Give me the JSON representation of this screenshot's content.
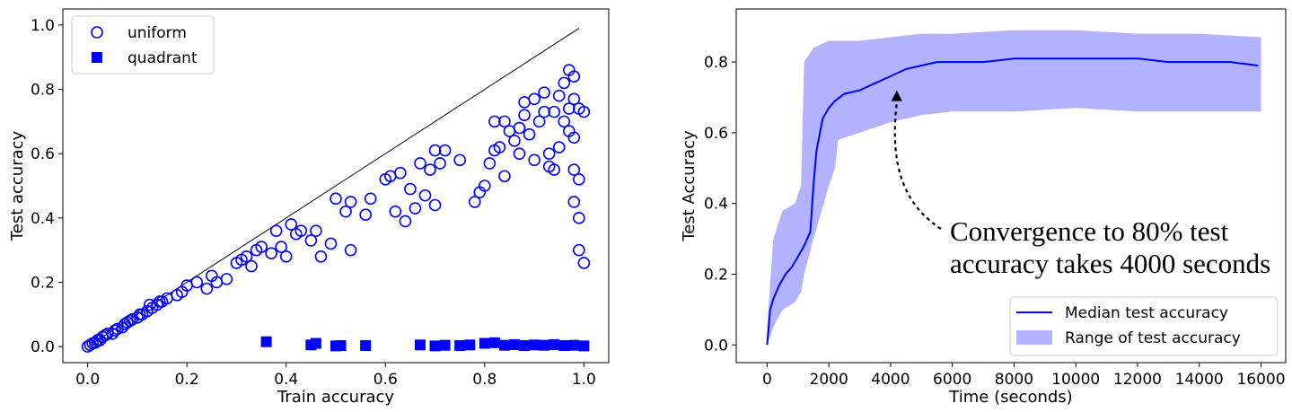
{
  "chart_data": [
    {
      "type": "scatter",
      "xlabel": "Train accuracy",
      "ylabel": "Test accuracy",
      "xlim": [
        -0.05,
        1.05
      ],
      "ylim": [
        -0.05,
        1.05
      ],
      "xticks": [
        0.0,
        0.2,
        0.4,
        0.6,
        0.8,
        1.0
      ],
      "yticks": [
        0.0,
        0.2,
        0.4,
        0.6,
        0.8,
        1.0
      ],
      "tick_labels_x": [
        "0.0",
        "0.2",
        "0.4",
        "0.6",
        "0.8",
        "1.0"
      ],
      "tick_labels_y": [
        "0.0",
        "0.2",
        "0.4",
        "0.6",
        "0.8",
        "1.0"
      ],
      "legend_position": "top-left",
      "reference_line": {
        "x": [
          0.0,
          0.99
        ],
        "y": [
          0.0,
          0.99
        ],
        "color": "#000000"
      },
      "series": [
        {
          "name": "uniform",
          "marker": "open-circle",
          "color": "#0000ff",
          "points": [
            [
              0.0,
              0.0
            ],
            [
              0.005,
              0.005
            ],
            [
              0.01,
              0.01
            ],
            [
              0.015,
              0.012
            ],
            [
              0.02,
              0.02
            ],
            [
              0.025,
              0.02
            ],
            [
              0.03,
              0.03
            ],
            [
              0.035,
              0.035
            ],
            [
              0.04,
              0.04
            ],
            [
              0.05,
              0.04
            ],
            [
              0.055,
              0.05
            ],
            [
              0.06,
              0.055
            ],
            [
              0.07,
              0.06
            ],
            [
              0.075,
              0.07
            ],
            [
              0.08,
              0.075
            ],
            [
              0.085,
              0.08
            ],
            [
              0.09,
              0.085
            ],
            [
              0.1,
              0.09
            ],
            [
              0.105,
              0.1
            ],
            [
              0.11,
              0.1
            ],
            [
              0.12,
              0.11
            ],
            [
              0.125,
              0.13
            ],
            [
              0.13,
              0.12
            ],
            [
              0.14,
              0.13
            ],
            [
              0.145,
              0.14
            ],
            [
              0.15,
              0.14
            ],
            [
              0.16,
              0.15
            ],
            [
              0.18,
              0.16
            ],
            [
              0.19,
              0.17
            ],
            [
              0.2,
              0.19
            ],
            [
              0.22,
              0.2
            ],
            [
              0.24,
              0.18
            ],
            [
              0.25,
              0.22
            ],
            [
              0.26,
              0.2
            ],
            [
              0.28,
              0.21
            ],
            [
              0.3,
              0.26
            ],
            [
              0.31,
              0.27
            ],
            [
              0.32,
              0.28
            ],
            [
              0.33,
              0.25
            ],
            [
              0.34,
              0.3
            ],
            [
              0.35,
              0.31
            ],
            [
              0.37,
              0.29
            ],
            [
              0.38,
              0.36
            ],
            [
              0.39,
              0.31
            ],
            [
              0.4,
              0.28
            ],
            [
              0.41,
              0.38
            ],
            [
              0.42,
              0.35
            ],
            [
              0.43,
              0.36
            ],
            [
              0.45,
              0.33
            ],
            [
              0.46,
              0.36
            ],
            [
              0.47,
              0.28
            ],
            [
              0.49,
              0.32
            ],
            [
              0.5,
              0.46
            ],
            [
              0.52,
              0.42
            ],
            [
              0.53,
              0.45
            ],
            [
              0.53,
              0.3
            ],
            [
              0.56,
              0.41
            ],
            [
              0.57,
              0.46
            ],
            [
              0.6,
              0.52
            ],
            [
              0.61,
              0.53
            ],
            [
              0.62,
              0.42
            ],
            [
              0.63,
              0.54
            ],
            [
              0.64,
              0.39
            ],
            [
              0.65,
              0.49
            ],
            [
              0.66,
              0.43
            ],
            [
              0.67,
              0.57
            ],
            [
              0.68,
              0.47
            ],
            [
              0.69,
              0.55
            ],
            [
              0.7,
              0.44
            ],
            [
              0.7,
              0.61
            ],
            [
              0.71,
              0.57
            ],
            [
              0.72,
              0.61
            ],
            [
              0.75,
              0.58
            ],
            [
              0.78,
              0.45
            ],
            [
              0.79,
              0.48
            ],
            [
              0.8,
              0.5
            ],
            [
              0.81,
              0.57
            ],
            [
              0.82,
              0.7
            ],
            [
              0.82,
              0.61
            ],
            [
              0.83,
              0.62
            ],
            [
              0.84,
              0.7
            ],
            [
              0.84,
              0.53
            ],
            [
              0.85,
              0.67
            ],
            [
              0.86,
              0.64
            ],
            [
              0.87,
              0.68
            ],
            [
              0.87,
              0.6
            ],
            [
              0.88,
              0.72
            ],
            [
              0.88,
              0.76
            ],
            [
              0.89,
              0.66
            ],
            [
              0.9,
              0.77
            ],
            [
              0.9,
              0.58
            ],
            [
              0.91,
              0.7
            ],
            [
              0.92,
              0.73
            ],
            [
              0.92,
              0.79
            ],
            [
              0.93,
              0.56
            ],
            [
              0.93,
              0.6
            ],
            [
              0.94,
              0.73
            ],
            [
              0.94,
              0.55
            ],
            [
              0.95,
              0.78
            ],
            [
              0.95,
              0.62
            ],
            [
              0.96,
              0.82
            ],
            [
              0.96,
              0.7
            ],
            [
              0.97,
              0.86
            ],
            [
              0.97,
              0.74
            ],
            [
              0.97,
              0.67
            ],
            [
              0.98,
              0.84
            ],
            [
              0.98,
              0.77
            ],
            [
              0.98,
              0.65
            ],
            [
              0.98,
              0.55
            ],
            [
              0.98,
              0.45
            ],
            [
              0.99,
              0.74
            ],
            [
              0.99,
              0.52
            ],
            [
              0.99,
              0.4
            ],
            [
              0.99,
              0.3
            ],
            [
              1.0,
              0.73
            ],
            [
              1.0,
              0.26
            ]
          ]
        },
        {
          "name": "quadrant",
          "marker": "filled-square",
          "color": "#0000ff",
          "points": [
            [
              0.36,
              0.015
            ],
            [
              0.45,
              0.005
            ],
            [
              0.46,
              0.01
            ],
            [
              0.5,
              0.002
            ],
            [
              0.51,
              0.003
            ],
            [
              0.56,
              0.003
            ],
            [
              0.67,
              0.005
            ],
            [
              0.7,
              0.002
            ],
            [
              0.72,
              0.004
            ],
            [
              0.75,
              0.003
            ],
            [
              0.77,
              0.005
            ],
            [
              0.8,
              0.01
            ],
            [
              0.82,
              0.012
            ],
            [
              0.84,
              0.004
            ],
            [
              0.86,
              0.006
            ],
            [
              0.88,
              0.003
            ],
            [
              0.9,
              0.005
            ],
            [
              0.92,
              0.004
            ],
            [
              0.94,
              0.006
            ],
            [
              0.96,
              0.003
            ],
            [
              0.98,
              0.004
            ],
            [
              1.0,
              0.002
            ]
          ]
        }
      ]
    },
    {
      "type": "line",
      "xlabel": "Time (seconds)",
      "ylabel": "Test Accuracy",
      "xlim": [
        -1000,
        16800
      ],
      "ylim": [
        -0.05,
        0.95
      ],
      "xticks": [
        0,
        2000,
        4000,
        6000,
        8000,
        10000,
        12000,
        14000,
        16000
      ],
      "yticks": [
        0.0,
        0.2,
        0.4,
        0.6,
        0.8
      ],
      "tick_labels_x": [
        "0",
        "2000",
        "4000",
        "6000",
        "8000",
        "10000",
        "12000",
        "14000",
        "16000"
      ],
      "tick_labels_y": [
        "0.0",
        "0.2",
        "0.4",
        "0.6",
        "0.8"
      ],
      "legend_position": "bottom-right",
      "series": [
        {
          "name": "Median test accuracy",
          "color": "#0000ff",
          "x": [
            0,
            100,
            200,
            400,
            600,
            800,
            1000,
            1200,
            1400,
            1500,
            1600,
            1800,
            2000,
            2200,
            2500,
            3000,
            3500,
            4000,
            4500,
            5000,
            5500,
            6000,
            7000,
            8000,
            9000,
            10000,
            11000,
            12000,
            13000,
            14000,
            15000,
            15900
          ],
          "y": [
            0.0,
            0.1,
            0.13,
            0.17,
            0.2,
            0.22,
            0.25,
            0.28,
            0.32,
            0.45,
            0.55,
            0.64,
            0.67,
            0.69,
            0.71,
            0.72,
            0.74,
            0.76,
            0.78,
            0.79,
            0.8,
            0.8,
            0.8,
            0.81,
            0.81,
            0.81,
            0.81,
            0.81,
            0.8,
            0.8,
            0.8,
            0.79
          ]
        },
        {
          "name": "Range of test accuracy",
          "color": "#b2b2ff",
          "type": "band",
          "x": [
            0,
            200,
            500,
            900,
            1100,
            1200,
            1500,
            2000,
            2200,
            2300,
            3000,
            4000,
            5000,
            6000,
            8000,
            10000,
            12000,
            14000,
            16000
          ],
          "low": [
            0.0,
            0.05,
            0.1,
            0.12,
            0.15,
            0.2,
            0.3,
            0.45,
            0.5,
            0.58,
            0.6,
            0.63,
            0.65,
            0.66,
            0.66,
            0.67,
            0.66,
            0.66,
            0.66
          ],
          "high": [
            0.05,
            0.3,
            0.38,
            0.4,
            0.45,
            0.8,
            0.84,
            0.86,
            0.86,
            0.86,
            0.86,
            0.87,
            0.88,
            0.88,
            0.89,
            0.89,
            0.88,
            0.88,
            0.87
          ]
        }
      ],
      "annotation": {
        "line1": "Convergence to 80% test",
        "line2": "accuracy takes 4000 seconds",
        "arrow_target": [
          4200,
          0.72
        ]
      }
    }
  ]
}
